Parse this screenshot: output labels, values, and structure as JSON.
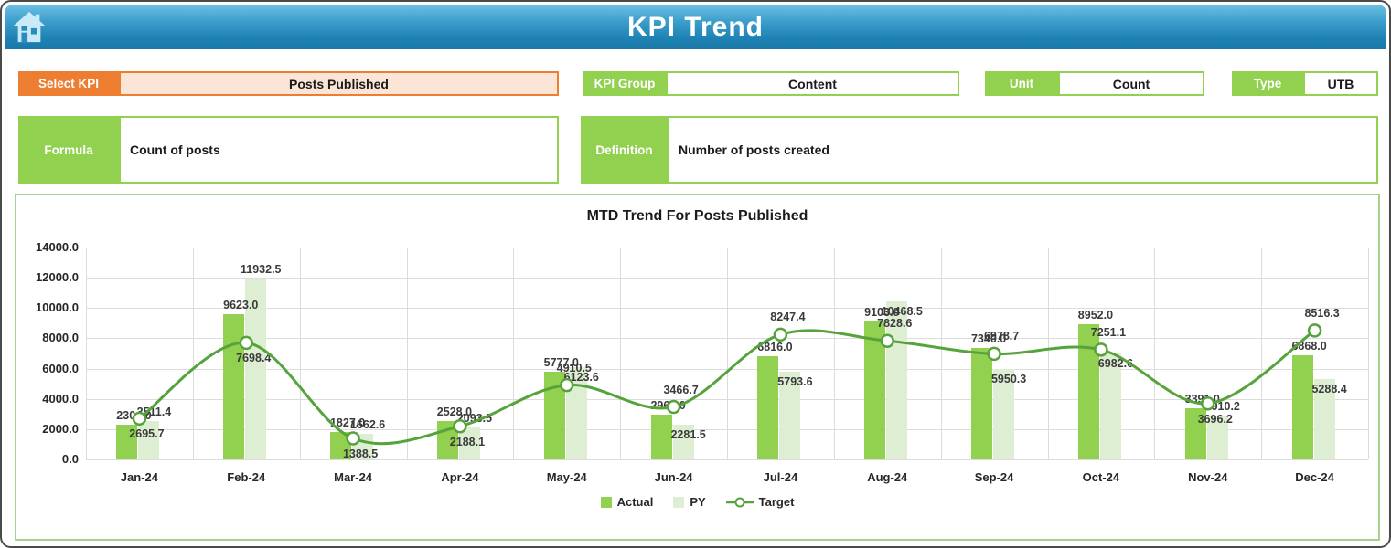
{
  "header": {
    "title": "KPI Trend",
    "home_icon": "home-icon"
  },
  "controls": {
    "select_kpi": {
      "label": "Select KPI",
      "value": "Posts Published"
    },
    "kpi_group": {
      "label": "KPI Group",
      "value": "Content"
    },
    "unit": {
      "label": "Unit",
      "value": "Count"
    },
    "type": {
      "label": "Type",
      "value": "UTB"
    }
  },
  "formula": {
    "label": "Formula",
    "value": "Count of posts"
  },
  "definition": {
    "label": "Definition",
    "value": "Number of posts created"
  },
  "colors": {
    "accent_orange": "#ed7d31",
    "accent_green": "#92d050",
    "py_green": "#ddeed2",
    "line_green": "#56a33c",
    "header_blue": "#1e82b4"
  },
  "chart_data": {
    "type": "bar",
    "subtype": "grouped-bars-with-line",
    "title": "MTD Trend For Posts Published",
    "categories": [
      "Jan-24",
      "Feb-24",
      "Mar-24",
      "Apr-24",
      "May-24",
      "Jun-24",
      "Jul-24",
      "Aug-24",
      "Sep-24",
      "Oct-24",
      "Nov-24",
      "Dec-24"
    ],
    "series": [
      {
        "name": "Actual",
        "type": "bar",
        "color": "#92d050",
        "values": [
          2304.0,
          9623.0,
          1827.0,
          2528.0,
          5777.0,
          2963.0,
          6816.0,
          9103.0,
          7340.0,
          8952.0,
          3391.0,
          6868.0
        ]
      },
      {
        "name": "PY",
        "type": "bar",
        "color": "#ddeed2",
        "values": [
          2511.4,
          11932.5,
          1662.6,
          2093.5,
          6123.6,
          2281.5,
          5793.6,
          10468.5,
          5950.3,
          6982.6,
          2910.2,
          5288.4
        ]
      },
      {
        "name": "Target",
        "type": "line",
        "color": "#56a33c",
        "marker": "open-circle",
        "values": [
          2695.7,
          7698.4,
          1388.5,
          2188.1,
          4910.5,
          3466.7,
          8247.4,
          7828.6,
          6978.7,
          7251.1,
          3696.2,
          8516.3
        ]
      }
    ],
    "ylim": [
      0,
      14000
    ],
    "ytick_step": 2000,
    "ytick_format": "one-decimal",
    "grid": true,
    "legend_position": "bottom",
    "layout_hints": {
      "py_label_inside": [
        false,
        false,
        false,
        false,
        true,
        true,
        true,
        true,
        true,
        true,
        false,
        true
      ],
      "target_label_above": [
        false,
        false,
        false,
        false,
        true,
        true,
        true,
        true,
        true,
        true,
        false,
        true
      ]
    }
  }
}
